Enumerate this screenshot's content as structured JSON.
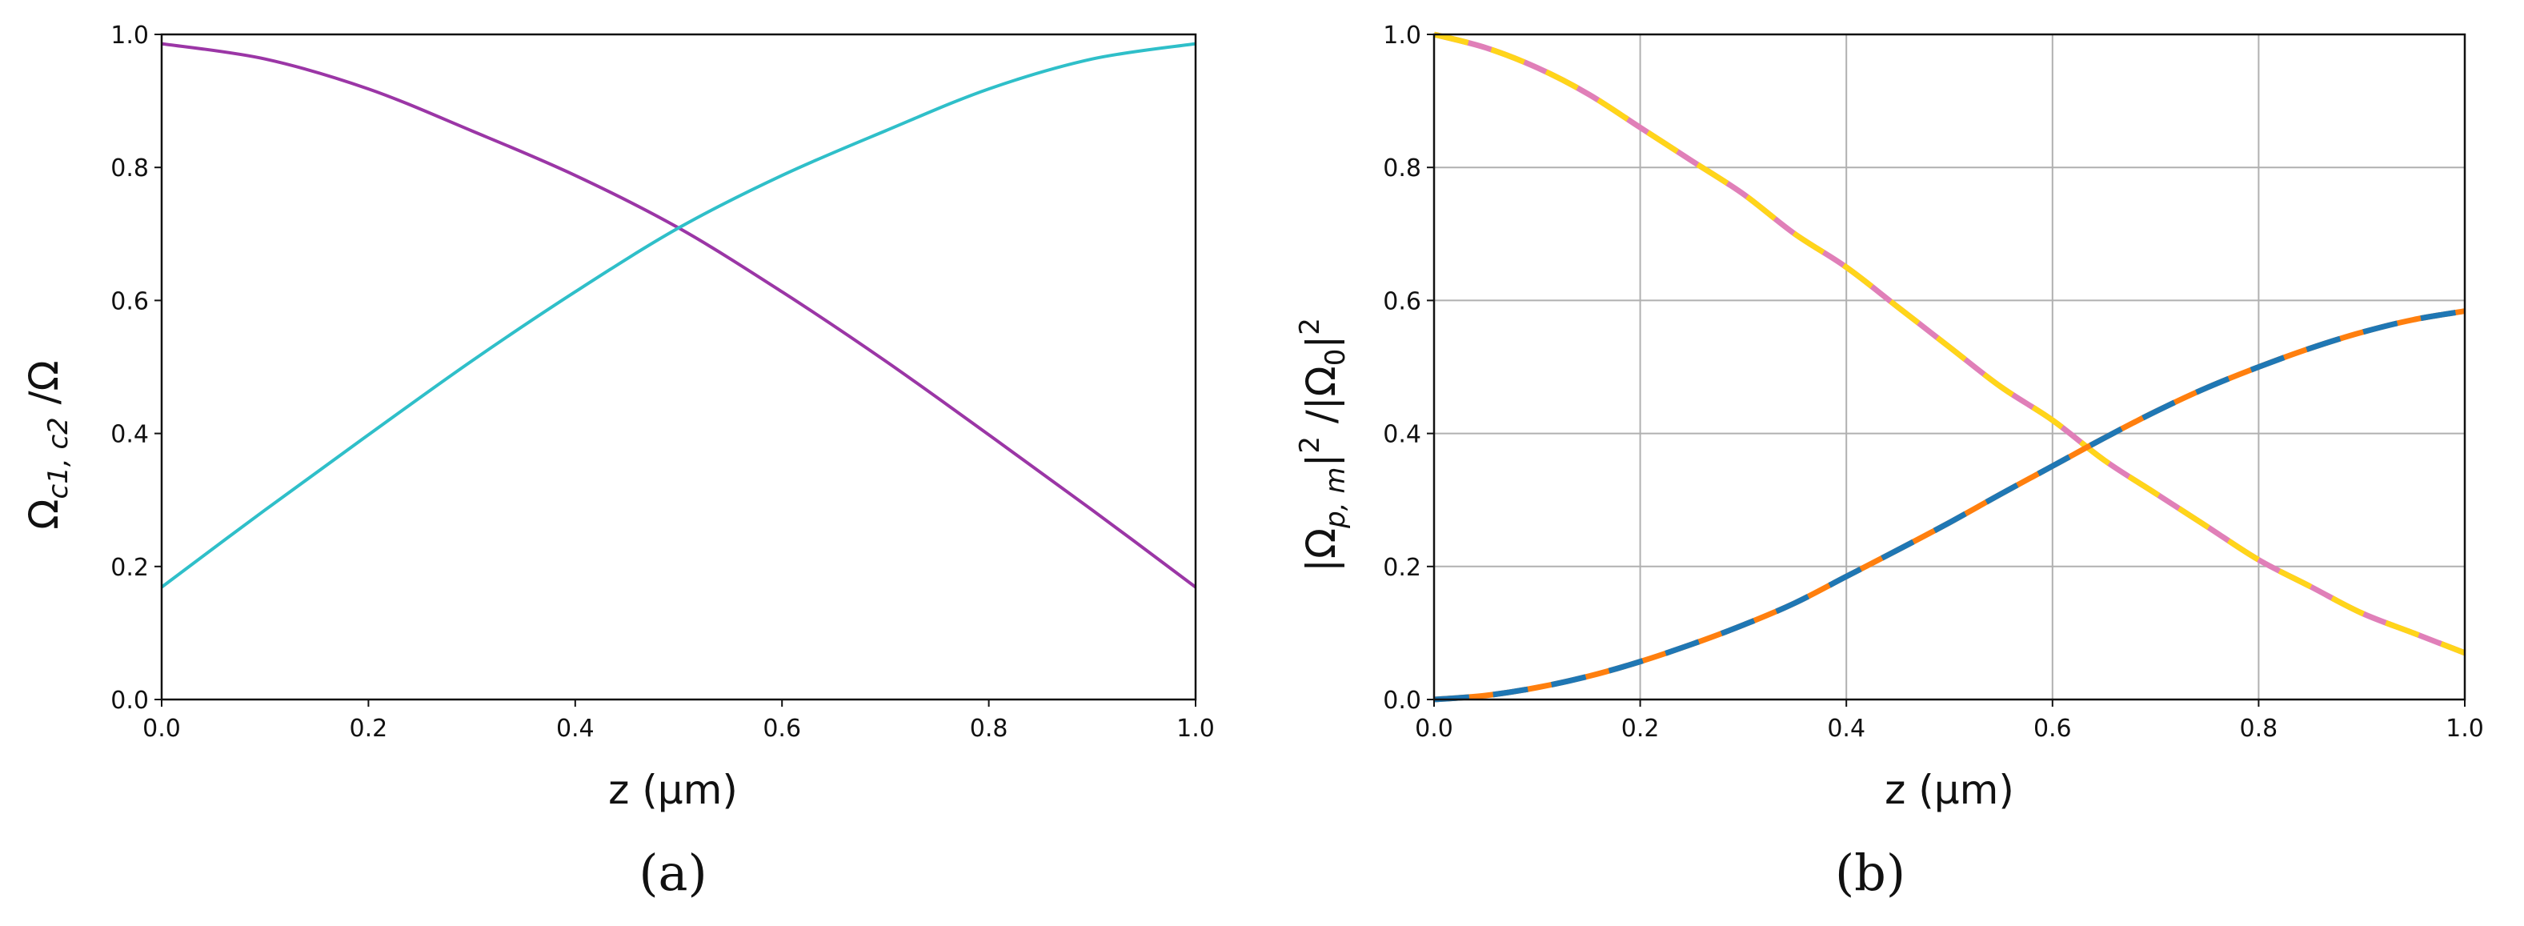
{
  "chart_data": [
    {
      "type": "line",
      "panel_label": "(a)",
      "xlabel": "z (μm)",
      "ylabel": "Ω_{c1, c2} /Ω",
      "ylabel_parts": {
        "main": "Ω",
        "sub": "c1, c2",
        "tail": " /Ω"
      },
      "xlim": [
        0.0,
        1.0
      ],
      "ylim": [
        0.0,
        1.0
      ],
      "xticks": [
        "0.0",
        "0.2",
        "0.4",
        "0.6",
        "0.8",
        "1.0"
      ],
      "yticks": [
        "0.0",
        "0.2",
        "0.4",
        "0.6",
        "0.8",
        "1.0"
      ],
      "grid": false,
      "x": [
        0.0,
        0.1,
        0.2,
        0.3,
        0.4,
        0.5,
        0.6,
        0.7,
        0.8,
        0.9,
        1.0
      ],
      "series": [
        {
          "color": "#9b36a6",
          "style": "solid",
          "values": [
            0.986,
            0.963,
            0.918,
            0.855,
            0.788,
            0.709,
            0.613,
            0.509,
            0.398,
            0.285,
            0.169
          ]
        },
        {
          "color": "#2fbfc9",
          "style": "solid",
          "values": [
            0.169,
            0.285,
            0.398,
            0.509,
            0.613,
            0.709,
            0.788,
            0.855,
            0.918,
            0.963,
            0.986
          ]
        }
      ]
    },
    {
      "type": "line",
      "panel_label": "(b)",
      "xlabel": "z (μm)",
      "ylabel": "|Ω_{p, m}|^2 /|Ω_0|^2",
      "ylabel_parts": {
        "a": "|Ω",
        "sub1": "p, m",
        "b": "|",
        "sup1": "2",
        "c": " /|Ω",
        "sub2": "0",
        "d": "|",
        "sup2": "2"
      },
      "xlim": [
        0.0,
        1.0
      ],
      "ylim": [
        0.0,
        1.0
      ],
      "xticks": [
        "0.0",
        "0.2",
        "0.4",
        "0.6",
        "0.8",
        "1.0"
      ],
      "yticks": [
        "0.0",
        "0.2",
        "0.4",
        "0.6",
        "0.8",
        "1.0"
      ],
      "grid": true,
      "x": [
        0.0,
        0.05,
        0.1,
        0.15,
        0.2,
        0.25,
        0.3,
        0.35,
        0.4,
        0.45,
        0.5,
        0.55,
        0.6,
        0.65,
        0.7,
        0.75,
        0.8,
        0.85,
        0.9,
        0.95,
        1.0
      ],
      "series": [
        {
          "color": "#e07fb8",
          "style": "solid",
          "values": [
            1.0,
            0.98,
            0.95,
            0.91,
            0.86,
            0.81,
            0.76,
            0.7,
            0.65,
            0.59,
            0.53,
            0.47,
            0.42,
            0.36,
            0.31,
            0.26,
            0.21,
            0.17,
            0.13,
            0.1,
            0.07
          ]
        },
        {
          "color": "#ffd51a",
          "style": "dashed",
          "values": [
            1.0,
            0.98,
            0.95,
            0.91,
            0.86,
            0.81,
            0.76,
            0.7,
            0.65,
            0.59,
            0.53,
            0.47,
            0.42,
            0.36,
            0.31,
            0.26,
            0.21,
            0.17,
            0.13,
            0.1,
            0.07
          ]
        },
        {
          "color": "#ff7f0e",
          "style": "solid",
          "values": [
            0.0,
            0.006,
            0.018,
            0.035,
            0.057,
            0.083,
            0.112,
            0.145,
            0.185,
            0.225,
            0.266,
            0.309,
            0.351,
            0.393,
            0.433,
            0.469,
            0.5,
            0.528,
            0.552,
            0.571,
            0.584
          ]
        },
        {
          "color": "#1f77b4",
          "style": "dashed",
          "values": [
            0.0,
            0.006,
            0.018,
            0.035,
            0.057,
            0.083,
            0.112,
            0.145,
            0.185,
            0.225,
            0.266,
            0.309,
            0.351,
            0.393,
            0.433,
            0.469,
            0.5,
            0.528,
            0.552,
            0.571,
            0.584
          ]
        }
      ]
    }
  ]
}
